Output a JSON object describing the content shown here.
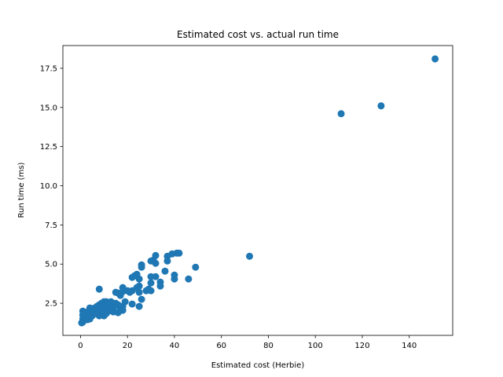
{
  "chart_data": {
    "type": "scatter",
    "title": "Estimated cost vs. actual run time",
    "xlabel": "Estimated cost (Herbie)",
    "ylabel": "Run time (ms)",
    "xlim": [
      -7.5,
      158.5
    ],
    "ylim": [
      0.45,
      18.95
    ],
    "xticks": [
      0,
      20,
      40,
      60,
      80,
      100,
      120,
      140
    ],
    "yticks": [
      2.5,
      5.0,
      7.5,
      10.0,
      12.5,
      15.0,
      17.5
    ],
    "xtick_labels": [
      "0",
      "20",
      "40",
      "60",
      "80",
      "100",
      "120",
      "140"
    ],
    "ytick_labels": [
      "2.5",
      "5.0",
      "7.5",
      "10.0",
      "12.5",
      "15.0",
      "17.5"
    ],
    "grid": false,
    "marker_color": "#1f77b4",
    "points": [
      [
        151,
        18.1
      ],
      [
        128,
        15.1
      ],
      [
        111,
        14.6
      ],
      [
        72,
        5.5
      ],
      [
        49,
        4.8
      ],
      [
        46,
        4.05
      ],
      [
        42,
        5.7
      ],
      [
        41,
        5.7
      ],
      [
        39,
        5.65
      ],
      [
        40,
        4.3
      ],
      [
        40,
        4.05
      ],
      [
        37,
        5.5
      ],
      [
        37,
        5.2
      ],
      [
        36,
        4.55
      ],
      [
        34,
        3.85
      ],
      [
        34,
        3.6
      ],
      [
        32,
        5.55
      ],
      [
        31,
        5.25
      ],
      [
        30,
        5.2
      ],
      [
        32,
        5.05
      ],
      [
        32,
        4.2
      ],
      [
        30,
        4.2
      ],
      [
        30,
        3.8
      ],
      [
        30,
        3.3
      ],
      [
        29,
        3.4
      ],
      [
        28,
        3.3
      ],
      [
        26,
        4.95
      ],
      [
        26,
        4.8
      ],
      [
        25,
        4.05
      ],
      [
        24,
        4.35
      ],
      [
        23,
        4.25
      ],
      [
        22,
        4.15
      ],
      [
        25,
        3.6
      ],
      [
        24,
        3.5
      ],
      [
        25,
        3.2
      ],
      [
        26,
        2.75
      ],
      [
        25,
        2.3
      ],
      [
        22,
        3.3
      ],
      [
        21,
        3.2
      ],
      [
        20,
        3.3
      ],
      [
        22,
        2.45
      ],
      [
        19,
        2.6
      ],
      [
        18,
        3.5
      ],
      [
        18,
        3.25
      ],
      [
        17,
        3.0
      ],
      [
        16,
        3.15
      ],
      [
        15,
        3.2
      ],
      [
        18,
        2.3
      ],
      [
        17,
        2.2
      ],
      [
        18,
        2.05
      ],
      [
        16,
        2.4
      ],
      [
        16,
        1.9
      ],
      [
        15,
        2.5
      ],
      [
        14,
        2.2
      ],
      [
        14,
        1.95
      ],
      [
        13,
        2.6
      ],
      [
        12,
        2.5
      ],
      [
        12,
        2.3
      ],
      [
        12,
        2.0
      ],
      [
        11,
        2.6
      ],
      [
        11,
        2.15
      ],
      [
        11,
        1.85
      ],
      [
        10,
        2.6
      ],
      [
        10,
        2.3
      ],
      [
        10,
        2.05
      ],
      [
        10,
        1.7
      ],
      [
        9,
        2.5
      ],
      [
        9,
        2.0
      ],
      [
        9,
        1.8
      ],
      [
        8,
        3.4
      ],
      [
        8,
        2.4
      ],
      [
        8,
        2.1
      ],
      [
        8,
        1.7
      ],
      [
        7,
        2.3
      ],
      [
        7,
        1.95
      ],
      [
        6,
        2.2
      ],
      [
        6,
        1.85
      ],
      [
        5,
        2.05
      ],
      [
        5,
        1.7
      ],
      [
        4,
        2.2
      ],
      [
        4,
        1.9
      ],
      [
        4,
        1.5
      ],
      [
        3,
        1.95
      ],
      [
        3,
        1.7
      ],
      [
        3,
        1.45
      ],
      [
        2,
        1.85
      ],
      [
        2,
        1.6
      ],
      [
        1,
        2.0
      ],
      [
        1,
        1.75
      ],
      [
        1,
        1.5
      ],
      [
        1,
        1.3
      ],
      [
        0.5,
        1.25
      ]
    ]
  }
}
